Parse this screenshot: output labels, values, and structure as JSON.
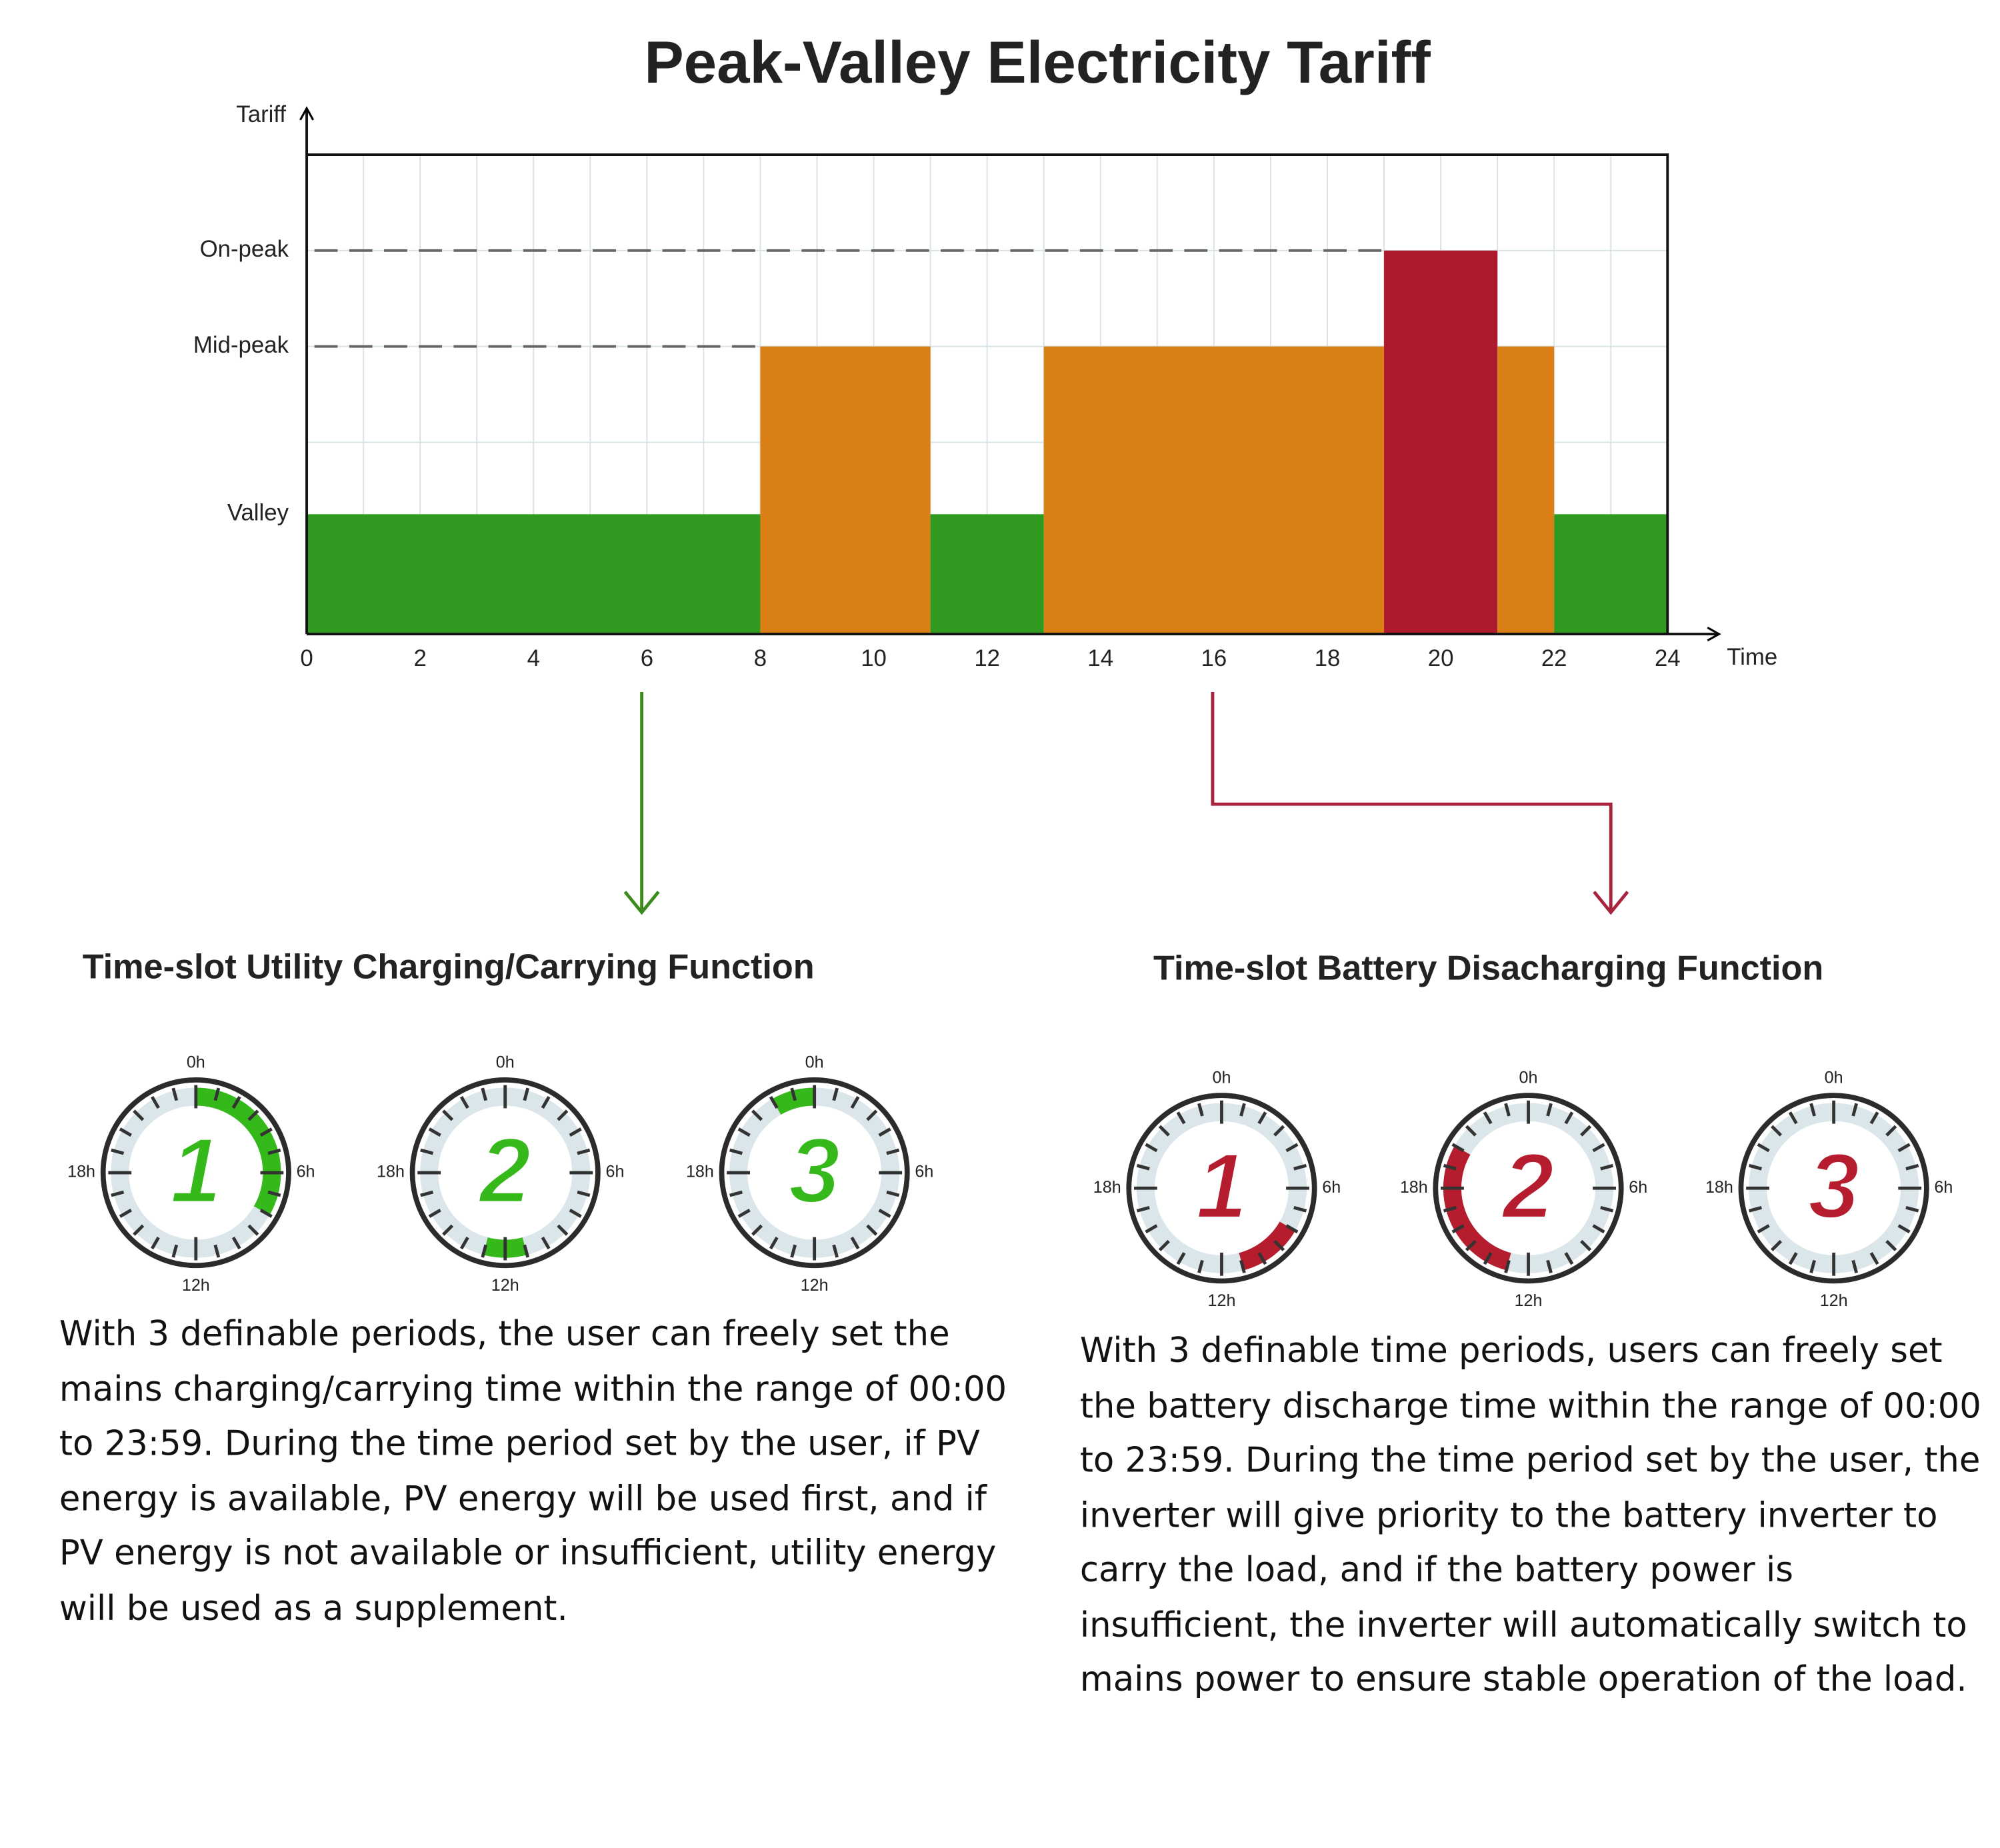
{
  "chart_data": {
    "type": "bar",
    "title": "Peak-Valley Electricity Tariff",
    "y_label": "Tariff",
    "x_label": "Time",
    "x": [
      0,
      8,
      11,
      13,
      19,
      21,
      22
    ],
    "x_end": [
      8,
      11,
      13,
      19,
      21,
      22,
      24
    ],
    "values": [
      1.25,
      3,
      1.25,
      3,
      4,
      3,
      1.25
    ],
    "colors": [
      "#2f9a1f",
      "#d97f15",
      "#2f9a1f",
      "#d97f15",
      "#ae1a2d",
      "#d97f15",
      "#2f9a1f"
    ],
    "xlim": [
      0,
      24
    ],
    "xticks": [
      0,
      2,
      4,
      6,
      8,
      10,
      12,
      14,
      16,
      18,
      20,
      22,
      24
    ],
    "ylim": [
      0,
      5
    ],
    "yticks": [
      {
        "value": 1.25,
        "label": "Valley"
      },
      {
        "value": 3,
        "label": "Mid-peak"
      },
      {
        "value": 4,
        "label": "On-peak"
      }
    ],
    "grid": true
  },
  "dial_labels": [
    "0h",
    "6h",
    "12h",
    "18h"
  ],
  "panels": [
    {
      "heading": "Time-slot Utility Charging/Carrying Function",
      "color": "#35b81a",
      "slots": [
        {
          "label": "1",
          "start": 0,
          "end": 8
        },
        {
          "label": "2",
          "start": 11,
          "end": 13
        },
        {
          "label": "3",
          "start": 22,
          "end": 24
        }
      ],
      "text": "With 3 definable periods, the user can freely set the mains charging/carrying time within the range of 00:00 to 23:59. During the time period set by the user, if PV energy is available, PV energy will be used first, and if PV energy is not available or insufficient, utility energy will be used as a supplement."
    },
    {
      "heading": "Time-slot Battery Disacharging Function",
      "color": "#b51c2e",
      "slots": [
        {
          "label": "1",
          "start": 8,
          "end": 11
        },
        {
          "label": "2",
          "start": 13,
          "end": 20
        },
        {
          "label": "3"
        }
      ],
      "text": "With 3 definable time periods, users can freely set the battery discharge time within the range of 00:00 to 23:59. During the time period set by the user, the inverter will give priority to the battery inverter to carry the load, and if the battery power is insufficient, the inverter will automatically switch to mains power to ensure stable operation of the load."
    }
  ]
}
